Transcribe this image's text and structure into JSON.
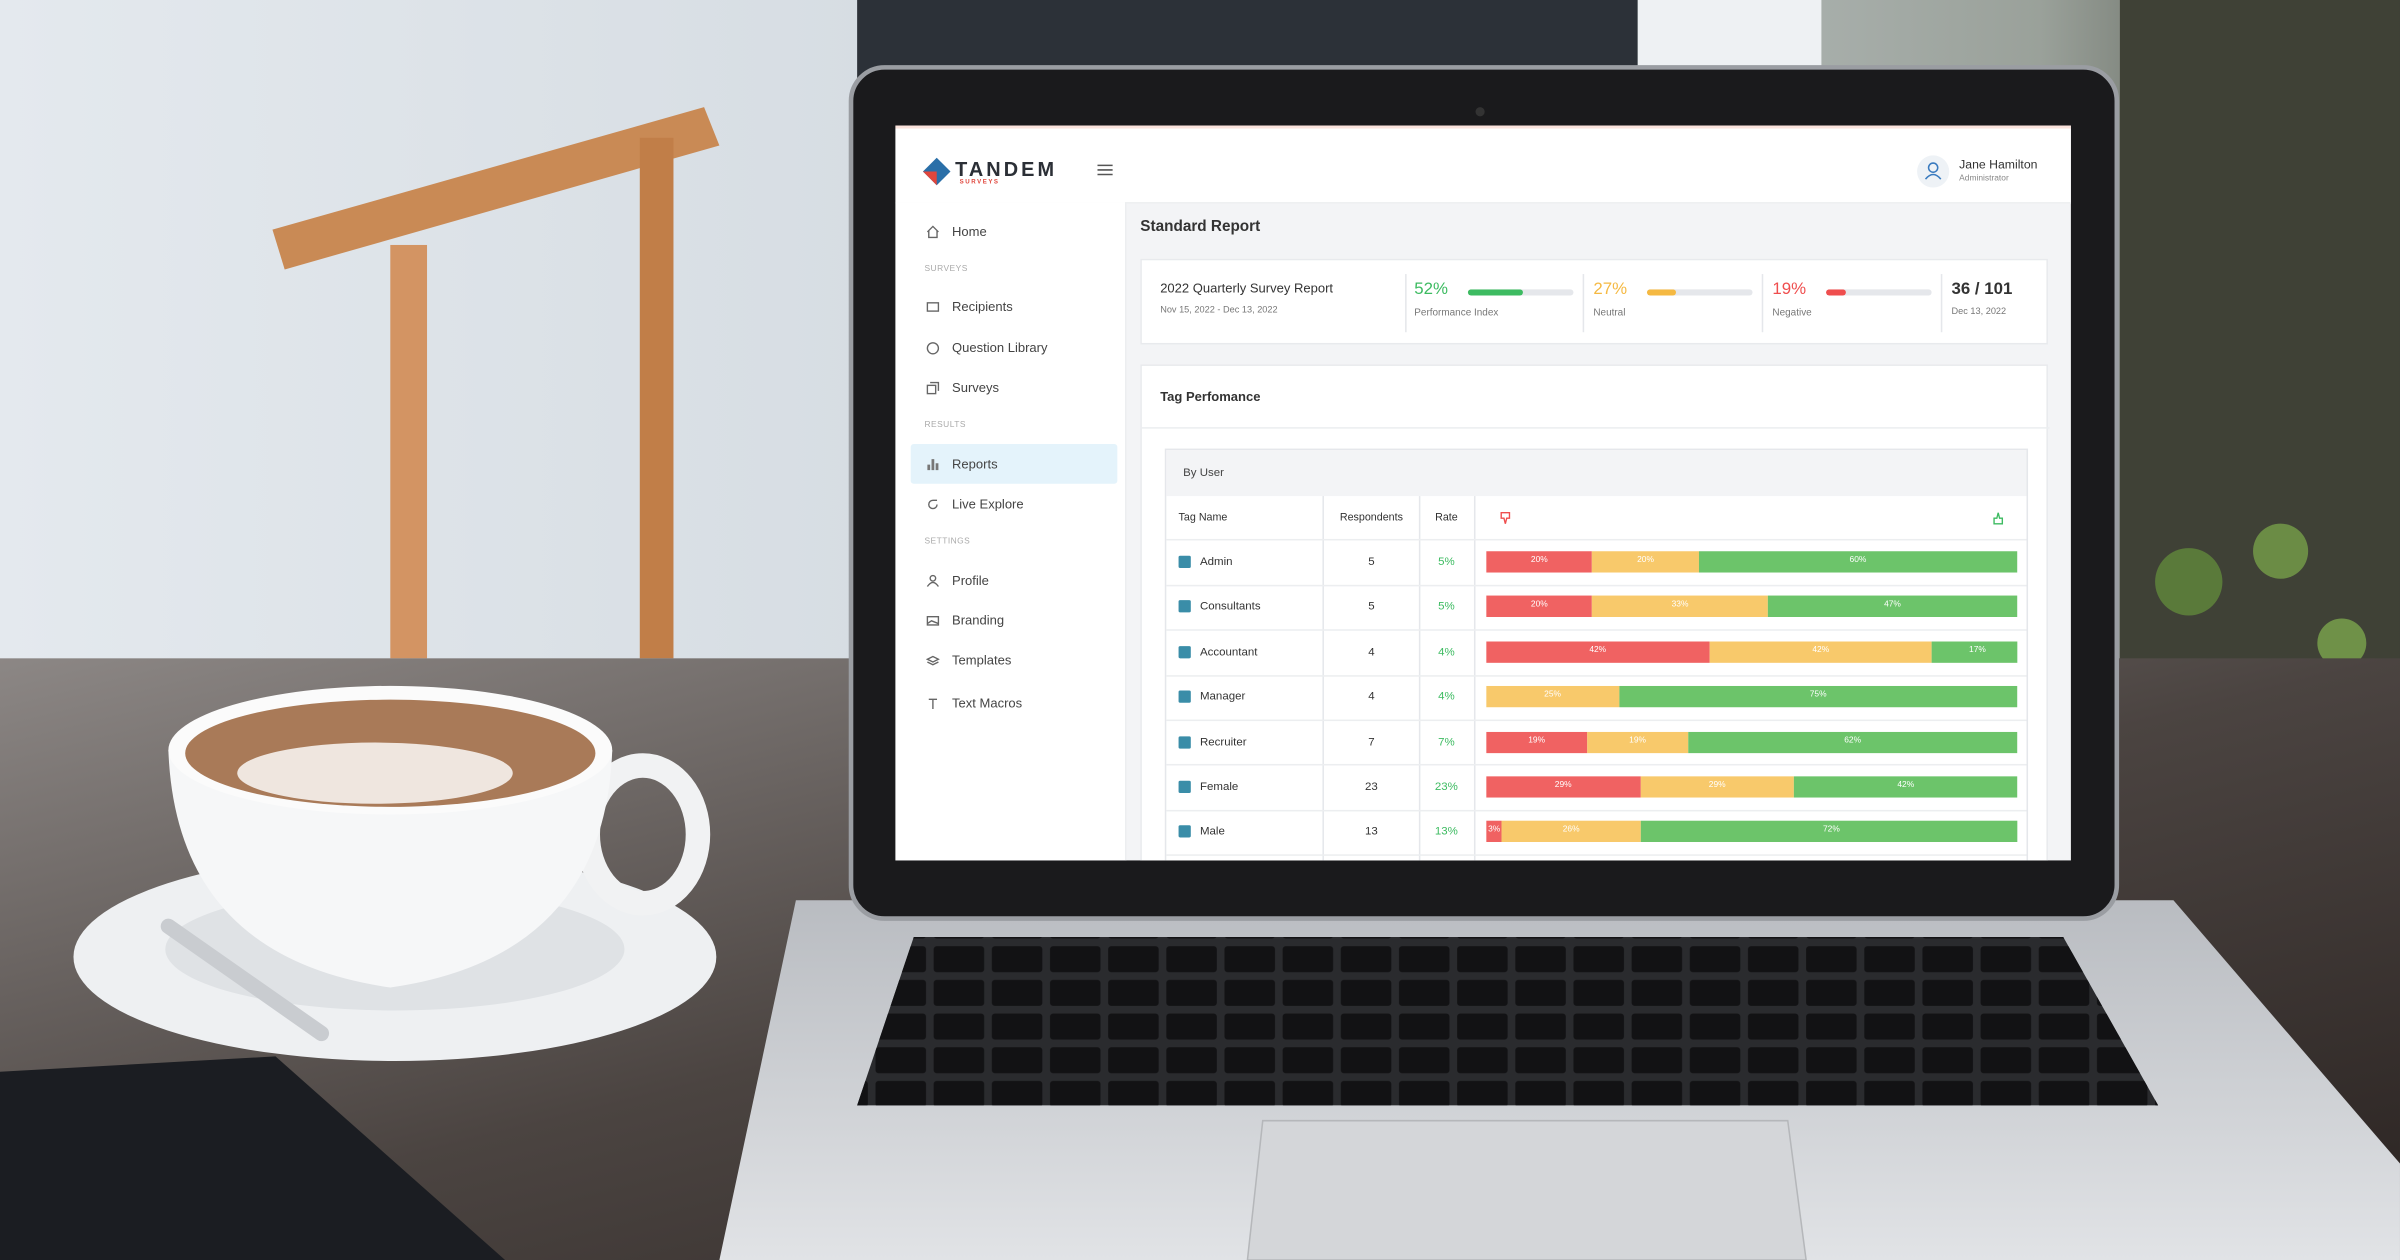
{
  "header": {
    "logo": "TANDEM",
    "logo_sub": "SURVEYS",
    "user_name": "Jane Hamilton",
    "user_role": "Administrator"
  },
  "sidebar": {
    "home": "Home",
    "sections": [
      {
        "title": "SURVEYS",
        "items": [
          "Recipients",
          "Question Library",
          "Surveys"
        ]
      },
      {
        "title": "RESULTS",
        "items": [
          "Reports",
          "Live Explore"
        ]
      },
      {
        "title": "SETTINGS",
        "items": [
          "Profile",
          "Branding",
          "Templates",
          "Text Macros"
        ]
      }
    ]
  },
  "page_title": "Standard Report",
  "report": {
    "title": "2022 Quarterly Survey Report",
    "dates": "Nov 15, 2022 - Dec 13, 2022",
    "metrics": [
      {
        "value": 52,
        "label": "52%",
        "caption": "Performance Index",
        "color": "#3dbb61"
      },
      {
        "value": 27,
        "label": "27%",
        "caption": "Neutral",
        "color": "#f5b942"
      },
      {
        "value": 19,
        "label": "19%",
        "caption": "Negative",
        "color": "#ef4e4e"
      }
    ],
    "count": "36 / 101",
    "count_date": "Dec 13, 2022"
  },
  "tag_performance": {
    "title": "Tag Perfomance",
    "group": "By User",
    "columns": [
      "Tag Name",
      "Respondents",
      "Rate"
    ],
    "colors": [
      "#f06262",
      "#f8c96b",
      "#6cc46a"
    ],
    "rows": [
      {
        "name": "Admin",
        "respondents": 5,
        "rate": "5%",
        "values": [
          20,
          20,
          60
        ],
        "value_labels": [
          "20%",
          "20%",
          "60%"
        ]
      },
      {
        "name": "Consultants",
        "respondents": 5,
        "rate": "5%",
        "values": [
          20,
          33,
          47
        ],
        "value_labels": [
          "20%",
          "33%",
          "47%"
        ]
      },
      {
        "name": "Accountant",
        "respondents": 4,
        "rate": "4%",
        "values": [
          42,
          42,
          17
        ],
        "value_labels": [
          "42%",
          "42%",
          "17%"
        ]
      },
      {
        "name": "Manager",
        "respondents": 4,
        "rate": "4%",
        "values": [
          null,
          25,
          75
        ],
        "value_labels": [
          null,
          "25%",
          "75%"
        ]
      },
      {
        "name": "Recruiter",
        "respondents": 7,
        "rate": "7%",
        "values": [
          19,
          19,
          62
        ],
        "value_labels": [
          "19%",
          "19%",
          "62%"
        ]
      },
      {
        "name": "Female",
        "respondents": 23,
        "rate": "23%",
        "values": [
          29,
          29,
          42
        ],
        "value_labels": [
          "29%",
          "29%",
          "42%"
        ]
      },
      {
        "name": "Male",
        "respondents": 13,
        "rate": "13%",
        "values": [
          3,
          26,
          72
        ],
        "value_labels": [
          "3%",
          "26%",
          "72%"
        ]
      }
    ]
  }
}
